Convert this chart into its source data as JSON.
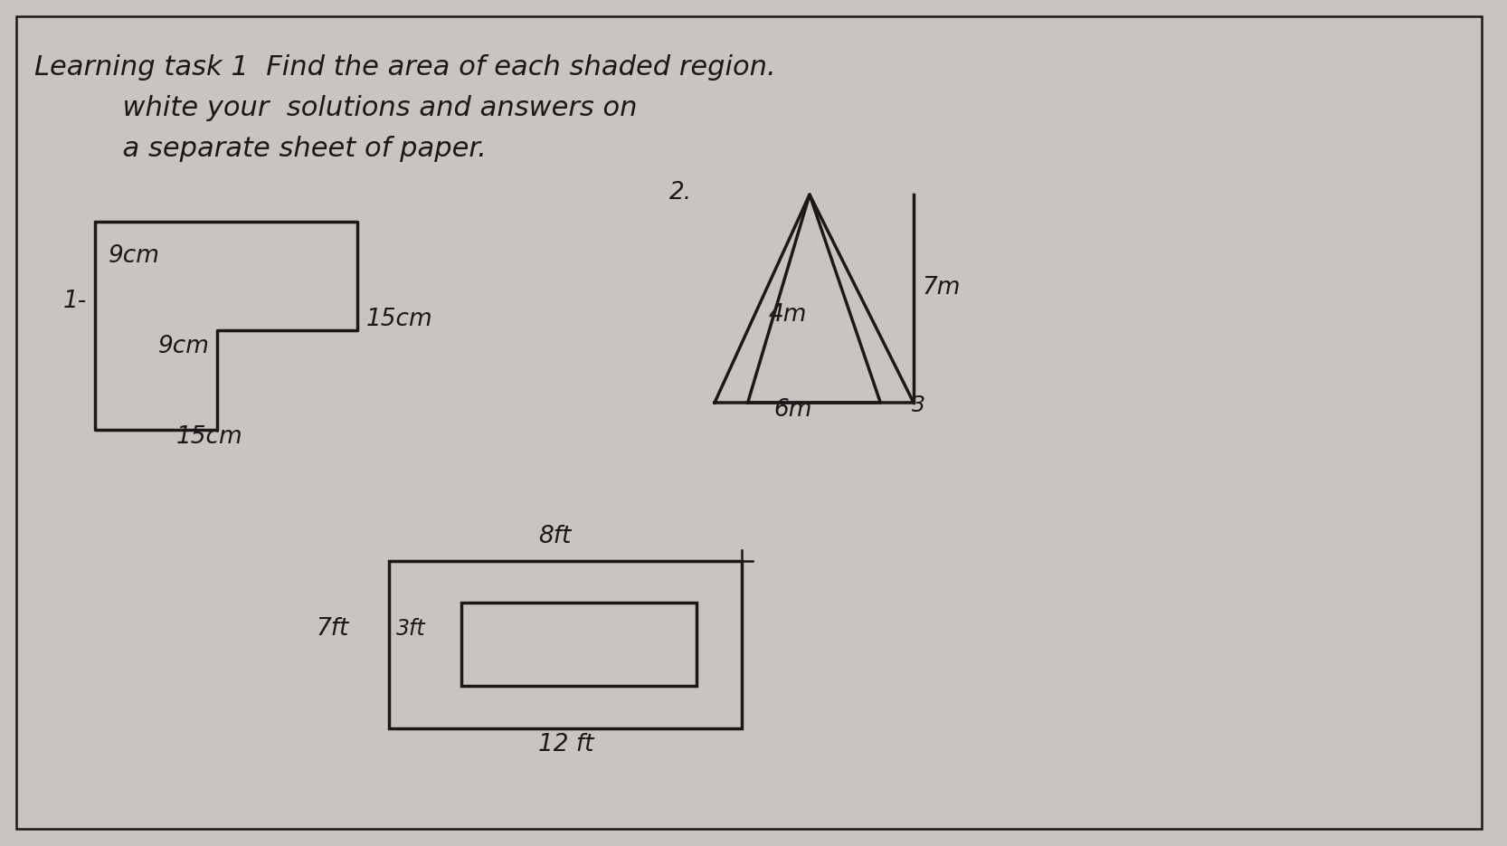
{
  "bg_color": "#c8c4c0",
  "paper_color": "#d4d0cc",
  "ink": "#1a1818",
  "lw": 2.5,
  "fig_w": 16.66,
  "fig_h": 9.35,
  "title1": "Learning task 1  Find the area of each shaded region.",
  "title2": "          white your  solutions and answers on",
  "title3": "          a separate sheet of paper.",
  "shape1_label": "1-",
  "shape1_note1": "9cm",
  "shape1_note2": "9cm",
  "shape1_note3": "15cm",
  "shape1_note4": "15cm",
  "shape2_label": "2.",
  "shape2_note1": "7m",
  "shape2_note2": "4m",
  "shape2_note3": "6m",
  "shape2_note4": "3",
  "shape3_note1": "8ft",
  "shape3_note2": "7ft",
  "shape3_note3": "3ft",
  "shape3_note4": "12 ft"
}
